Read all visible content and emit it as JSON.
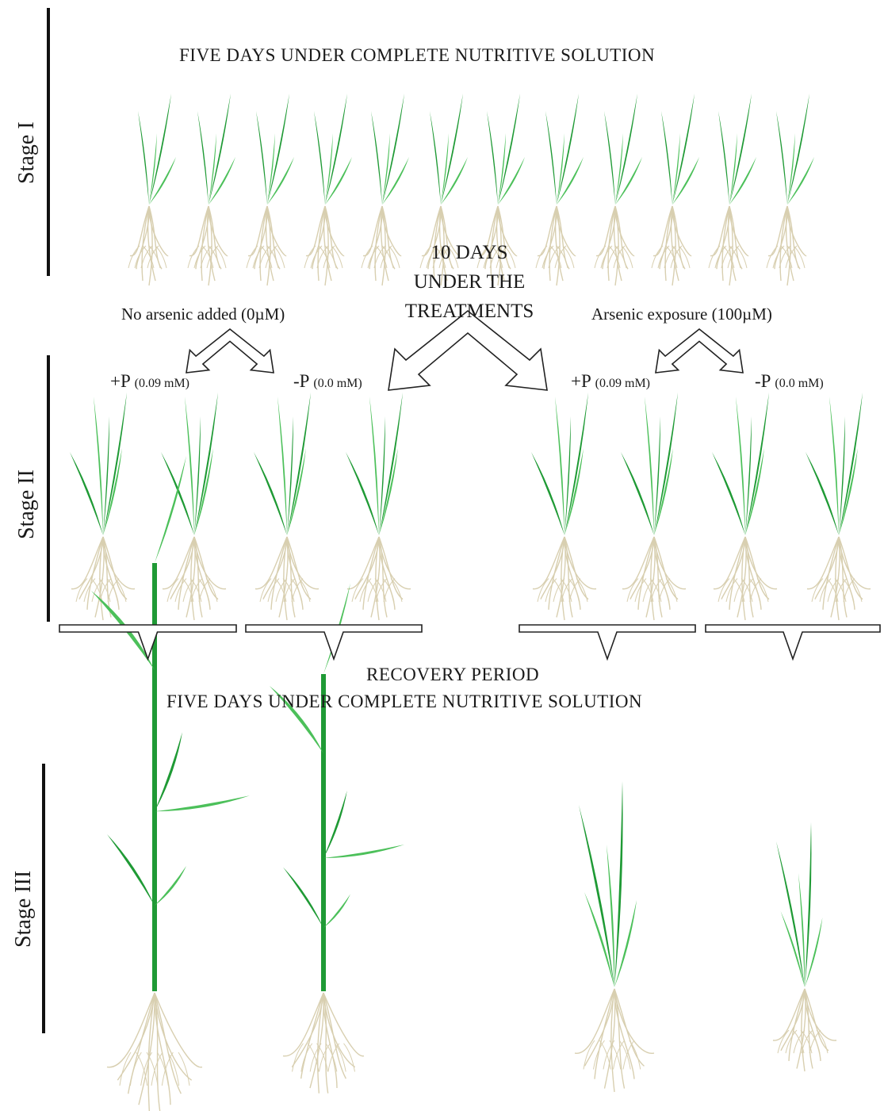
{
  "stage_labels": {
    "stage1": "Stage I",
    "stage2": "Stage II",
    "stage3": "Stage III"
  },
  "texts": {
    "stage1_title": "FIVE DAYS UNDER COMPLETE NUTRITIVE SOLUTION",
    "treatment_days": "10 DAYS",
    "treatment_under": "UNDER THE",
    "treatment_word": "TREATMENTS",
    "no_arsenic": "No arsenic added (0µM)",
    "arsenic": "Arsenic exposure (100µM)",
    "plus_p": "+P",
    "plus_p_conc": "(0.09 mM)",
    "minus_p": "-P",
    "minus_p_conc": "(0.0 mM)",
    "recovery": "RECOVERY PERIOD",
    "recovery_solution": "FIVE DAYS UNDER COMPLETE NUTRITIVE SOLUTION"
  },
  "colors": {
    "leaf_dark": "#1f9a35",
    "leaf_light": "#4cc05a",
    "root": "#d8cfb0",
    "outline": "#222222",
    "bar": "#111111"
  },
  "icons": [
    "seedling-icon",
    "split-arrow-icon",
    "bracket-arrow-icon"
  ]
}
